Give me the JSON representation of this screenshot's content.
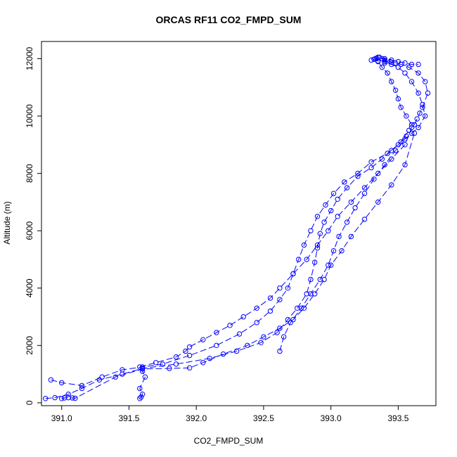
{
  "chart_data": {
    "type": "line",
    "title": "ORCAS RF11 CO2_FMPD_SUM",
    "xlabel": "CO2_FMPD_SUM",
    "ylabel": "Altitude (m)",
    "xlim": [
      390.85,
      393.78
    ],
    "ylim": [
      -100,
      12600
    ],
    "xticks": [
      391.0,
      391.5,
      392.0,
      392.5,
      393.0,
      393.5
    ],
    "xtick_labels": [
      "391.0",
      "391.5",
      "392.0",
      "392.5",
      "393.0",
      "393.5"
    ],
    "yticks": [
      0,
      2000,
      4000,
      6000,
      8000,
      10000,
      12000
    ],
    "ytick_labels": [
      "0",
      "2000",
      "4000",
      "6000",
      "8000",
      "10000",
      "12000"
    ],
    "marker": "open-circle",
    "line_style": "dashed",
    "color": "#0000ff",
    "grid": false,
    "series": [
      {
        "x": [
          391.58,
          391.59,
          391.6,
          391.58,
          391.62,
          391.6,
          391.6,
          391.58,
          391.7,
          391.85,
          391.92,
          391.95,
          392.05,
          392.15,
          392.25,
          392.35,
          392.45,
          392.55,
          392.62,
          392.72,
          392.82,
          392.9,
          392.98,
          393.05,
          393.15,
          393.25,
          393.35,
          393.45,
          393.55,
          393.6
        ],
        "y": [
          150,
          200,
          300,
          500,
          900,
          1100,
          1200,
          1250,
          1400,
          1600,
          1800,
          1950,
          2200,
          2450,
          2700,
          3000,
          3300,
          3650,
          4000,
          4500,
          5000,
          5500,
          6000,
          6500,
          7000,
          7500,
          8000,
          8500,
          9000,
          9600
        ]
      },
      {
        "x": [
          390.88,
          390.95,
          391.05,
          391.15,
          391.28,
          391.45,
          391.6,
          391.85,
          392.1,
          392.3,
          392.48,
          392.6,
          392.68,
          392.75,
          392.82,
          392.85,
          392.88,
          392.9,
          392.92,
          392.95,
          393.0,
          393.05,
          393.12,
          393.2,
          393.3,
          393.38,
          393.45,
          393.52,
          393.58
        ],
        "y": [
          150,
          180,
          300,
          500,
          800,
          1000,
          1200,
          1350,
          1550,
          1800,
          2100,
          2450,
          2900,
          3300,
          3800,
          4300,
          4900,
          5400,
          5900,
          6300,
          6700,
          7100,
          7500,
          7900,
          8200,
          8500,
          8800,
          9100,
          9500
        ]
      },
      {
        "x": [
          391.0,
          391.02,
          391.05,
          391.08,
          391.1,
          391.4,
          391.6,
          391.8,
          391.95,
          392.05,
          392.2,
          392.38,
          392.5,
          392.62,
          392.72,
          392.8,
          392.88,
          392.95,
          393.0,
          393.08,
          393.15,
          393.25,
          393.35,
          393.45,
          393.55,
          393.62
        ],
        "y": [
          150,
          170,
          180,
          170,
          160,
          900,
          1180,
          1200,
          1220,
          1400,
          1700,
          2000,
          2300,
          2600,
          2900,
          3300,
          3800,
          4300,
          4800,
          5300,
          5800,
          6400,
          7000,
          7600,
          8300,
          9400
        ]
      },
      {
        "x": [
          390.92,
          391.0,
          391.15,
          391.3,
          391.45,
          391.6,
          391.75,
          391.95,
          392.15,
          392.32,
          392.45,
          392.55,
          392.62,
          392.68,
          392.72,
          392.76,
          392.8,
          392.85,
          392.9,
          392.96,
          393.02,
          393.1,
          393.2,
          393.3,
          393.42,
          393.5,
          393.56
        ],
        "y": [
          800,
          700,
          600,
          900,
          1150,
          1250,
          1350,
          1650,
          2000,
          2400,
          2800,
          3200,
          3600,
          4000,
          4500,
          5000,
          5500,
          6000,
          6500,
          6900,
          7300,
          7700,
          8000,
          8400,
          8700,
          9000,
          9300
        ]
      },
      {
        "x": [
          392.62,
          392.65,
          392.7,
          392.78,
          392.85,
          392.92,
          392.98,
          393.02,
          393.06,
          393.12,
          393.18,
          393.25,
          393.32,
          393.4,
          393.48,
          393.55,
          393.6,
          393.65,
          393.7,
          393.68,
          393.65,
          393.6,
          393.55,
          393.5,
          393.45,
          393.4
        ],
        "y": [
          1800,
          2300,
          2800,
          3300,
          3800,
          4300,
          4800,
          5300,
          5800,
          6300,
          6800,
          7300,
          7800,
          8300,
          8800,
          9200,
          9400,
          9600,
          10000,
          10400,
          10800,
          11200,
          11500,
          11700,
          11800,
          11850
        ]
      },
      {
        "x": [
          393.6,
          393.56,
          393.52,
          393.5,
          393.48,
          393.45,
          393.42,
          393.38,
          393.35,
          393.33,
          393.35,
          393.4,
          393.45,
          393.5,
          393.55,
          393.6,
          393.65
        ],
        "y": [
          9700,
          10000,
          10300,
          10600,
          10900,
          11200,
          11500,
          11700,
          11900,
          12000,
          12050,
          12000,
          11950,
          11900,
          11850,
          11800,
          11800
        ]
      },
      {
        "x": [
          393.62,
          393.64,
          393.66,
          393.68,
          393.72,
          393.7,
          393.65,
          393.58,
          393.52,
          393.48,
          393.44,
          393.4,
          393.38,
          393.36,
          393.34,
          393.32,
          393.3,
          393.35,
          393.4,
          393.45
        ],
        "y": [
          9700,
          9900,
          10100,
          10300,
          10800,
          11200,
          11500,
          11700,
          11800,
          11850,
          11900,
          11950,
          12000,
          12050,
          12020,
          11980,
          11950,
          11920,
          11900,
          11880
        ]
      }
    ]
  }
}
